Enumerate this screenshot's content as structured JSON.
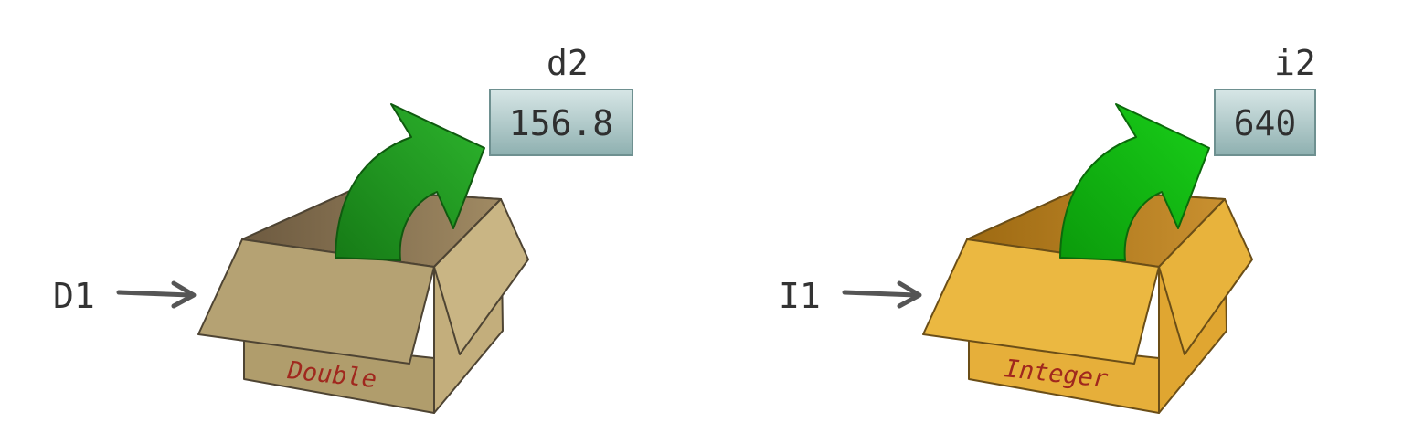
{
  "diagram": {
    "unboxing_left": {
      "pointer_label": "D1",
      "box_type_label": "Double",
      "result_var_name": "d2",
      "result_value": "156.8",
      "colors": {
        "box_front": "#b5a273",
        "box_side": "#c8b483",
        "box_inner": "#7a6548",
        "type_text": "#a0281e",
        "arrow": "#1f9a1f"
      }
    },
    "unboxing_right": {
      "pointer_label": "I1",
      "box_type_label": "Integer",
      "result_var_name": "i2",
      "result_value": "640",
      "colors": {
        "box_front": "#ebb841",
        "box_side": "#e4ad34",
        "box_inner": "#a8741a",
        "type_text": "#a0281e",
        "arrow": "#12b512"
      }
    },
    "value_box_color": "#a9c4c4",
    "pointer_arrow_color": "#555555"
  }
}
